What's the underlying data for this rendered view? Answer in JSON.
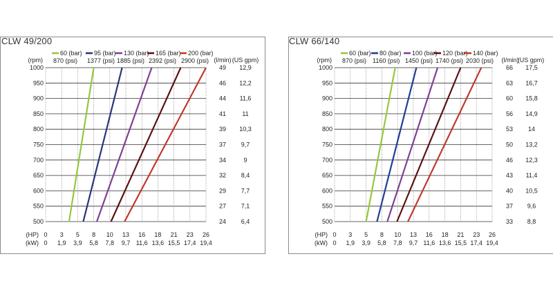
{
  "chart_data": [
    {
      "type": "line",
      "title": "CLW 49/200",
      "rpm_label": "(rpm)",
      "rpm_ticks": [
        1000,
        950,
        900,
        850,
        800,
        750,
        700,
        650,
        600,
        550,
        500
      ],
      "flow_headers": [
        "(l/min)",
        "(US gpm)"
      ],
      "lmin": [
        "49",
        "46",
        "44",
        "41",
        "39",
        "37",
        "34",
        "32",
        "29",
        "27",
        "24"
      ],
      "usgpm": [
        "12,9",
        "12,2",
        "11,6",
        "11",
        "10,3",
        "9,7",
        "9",
        "8,4",
        "7,7",
        "7,1",
        "6,4"
      ],
      "hp_label": "(HP)",
      "kw_label": "(kW)",
      "hp_ticks": [
        "0",
        "3",
        "5",
        "8",
        "10",
        "13",
        "16",
        "18",
        "21",
        "23",
        "26"
      ],
      "kw_ticks": [
        "0",
        "1,9",
        "3,9",
        "5,8",
        "7,8",
        "9,7",
        "11,6",
        "13,6",
        "15,5",
        "17,4",
        "19,4"
      ],
      "xlim": [
        0,
        26
      ],
      "ylim": [
        500,
        1000
      ],
      "series": [
        {
          "name": "60 (bar)",
          "sub": "870 (psi)",
          "color": "#94c83d",
          "x": [
            3.8,
            7.8
          ],
          "y": [
            500,
            1000
          ]
        },
        {
          "name": "95 (bar)",
          "sub": "1377 (psi)",
          "color": "#24367a",
          "x": [
            6.1,
            12.4
          ],
          "y": [
            500,
            1000
          ]
        },
        {
          "name": "130 (bar)",
          "sub": "1885 (psi)",
          "color": "#7e3f98",
          "x": [
            8.3,
            17.2
          ],
          "y": [
            500,
            1000
          ]
        },
        {
          "name": "165 (bar)",
          "sub": "2392 (psi)",
          "color": "#5a1112",
          "x": [
            10.6,
            21.9
          ],
          "y": [
            500,
            1000
          ]
        },
        {
          "name": "200 (bar)",
          "sub": "2900 (psi)",
          "color": "#c0392b",
          "x": [
            12.8,
            26.0
          ],
          "y": [
            500,
            1000
          ]
        }
      ]
    },
    {
      "type": "line",
      "title": "CLW 66/140",
      "rpm_label": "(rpm)",
      "rpm_ticks": [
        1000,
        950,
        900,
        850,
        800,
        750,
        700,
        650,
        600,
        550,
        500
      ],
      "flow_headers": [
        "(l/min)",
        "(US gpm)"
      ],
      "lmin": [
        "66",
        "63",
        "60",
        "56",
        "53",
        "50",
        "46",
        "43",
        "40",
        "37",
        "33"
      ],
      "usgpm": [
        "17,5",
        "16,7",
        "15,8",
        "14,9",
        "14",
        "13,2",
        "12,3",
        "11,4",
        "10,5",
        "9,6",
        "8,8"
      ],
      "hp_label": "(HP)",
      "kw_label": "(kW)",
      "hp_ticks": [
        "0",
        "3",
        "5",
        "8",
        "10",
        "13",
        "16",
        "18",
        "21",
        "23",
        "26"
      ],
      "kw_ticks": [
        "0",
        "1,9",
        "3,9",
        "5,8",
        "7,8",
        "9,7",
        "11,6",
        "13,6",
        "15,5",
        "17,4",
        "19,4"
      ],
      "xlim": [
        0,
        26
      ],
      "ylim": [
        500,
        1000
      ],
      "series": [
        {
          "name": "60 (bar)",
          "sub": "870 (psi)",
          "color": "#94c83d",
          "x": [
            5.2,
            10.0
          ],
          "y": [
            500,
            1000
          ]
        },
        {
          "name": "80 (bar)",
          "sub": "1160 (psi)",
          "color": "#1f3d96",
          "x": [
            7.0,
            13.5
          ],
          "y": [
            500,
            1000
          ]
        },
        {
          "name": "100 (bar)",
          "sub": "1450 (psi)",
          "color": "#7e3f98",
          "x": [
            8.7,
            17.0
          ],
          "y": [
            500,
            1000
          ]
        },
        {
          "name": "120 (bar)",
          "sub": "1740 (psi)",
          "color": "#5a1112",
          "x": [
            10.3,
            20.8
          ],
          "y": [
            500,
            1000
          ]
        },
        {
          "name": "140 (bar)",
          "sub": "2030 (psi)",
          "color": "#c0392b",
          "x": [
            12.1,
            24.2
          ],
          "y": [
            500,
            1000
          ]
        }
      ]
    }
  ]
}
